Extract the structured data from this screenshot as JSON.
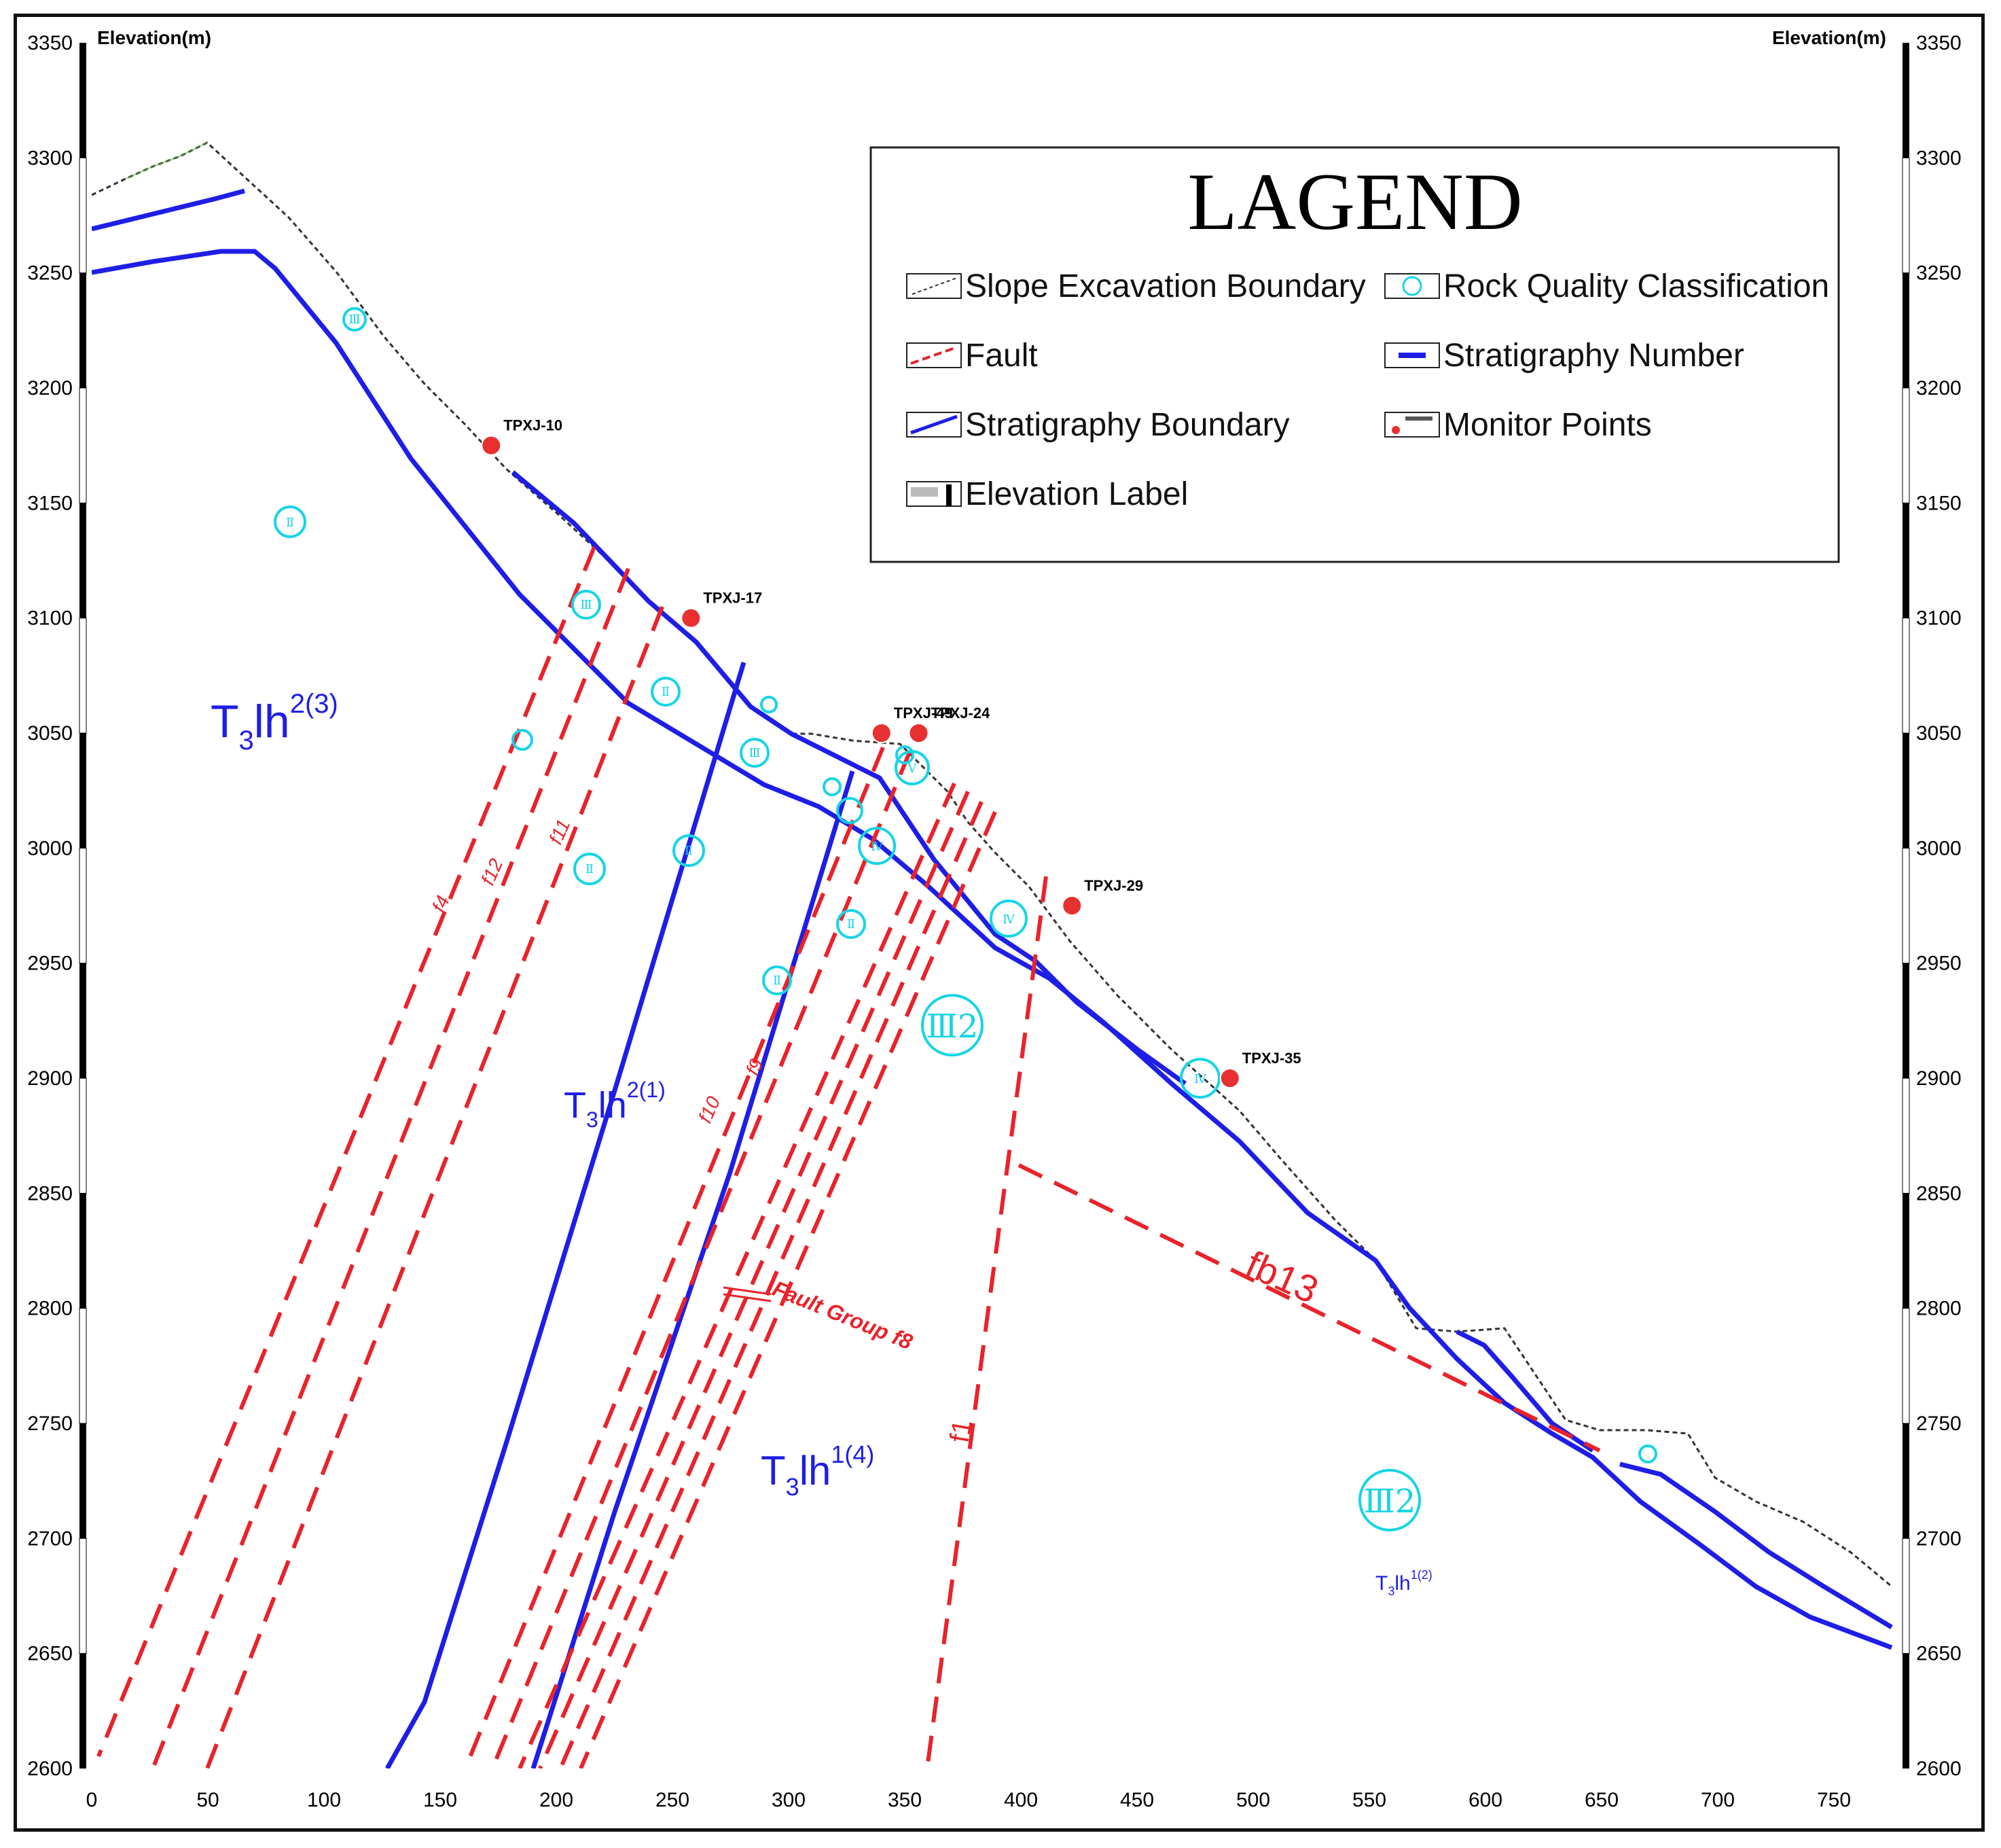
{
  "axes": {
    "left_label": "Elevation(m)",
    "right_label": "Elevation(m)",
    "y_ticks": [
      "3350",
      "3300",
      "3250",
      "3200",
      "3150",
      "3100",
      "3050",
      "3000",
      "2950",
      "2900",
      "2850",
      "2800",
      "2750",
      "2700",
      "2650",
      "2600"
    ],
    "x_ticks": [
      "0",
      "50",
      "100",
      "150",
      "200",
      "250",
      "300",
      "350",
      "400",
      "450",
      "500",
      "550",
      "600",
      "650",
      "700",
      "750"
    ]
  },
  "legend": {
    "title": "LAGEND",
    "items": [
      {
        "label": "Slope Excavation Boundary"
      },
      {
        "label": "Rock Quality Classification"
      },
      {
        "label": "Fault"
      },
      {
        "label": "Stratigraphy Number"
      },
      {
        "label": "Stratigraphy Boundary"
      },
      {
        "label": "Monitor Points"
      },
      {
        "label": "Elevation Label"
      }
    ]
  },
  "monitor_points": [
    {
      "label": "TPXJ-10",
      "x": 172,
      "elev": 3175
    },
    {
      "label": "TPXJ-17",
      "x": 258,
      "elev": 3100
    },
    {
      "label": "TPXJ-49",
      "x": 340,
      "elev": 3050
    },
    {
      "label": "TPXJ-24",
      "x": 356,
      "elev": 3050
    },
    {
      "label": "TPXJ-29",
      "x": 422,
      "elev": 2975
    },
    {
      "label": "TPXJ-35",
      "x": 490,
      "elev": 2900
    }
  ],
  "strata": [
    {
      "base": "T",
      "sub": "3",
      "mid": "lh",
      "sup": "2(3)"
    },
    {
      "base": "T",
      "sub": "3",
      "mid": "lh",
      "sup": "2(1)"
    },
    {
      "base": "T",
      "sub": "3",
      "mid": "lh",
      "sup": "1(4)"
    },
    {
      "base": "T",
      "sub": "3",
      "mid": "lh",
      "sup": "1(2)"
    }
  ],
  "fault_labels": {
    "f1": "f1",
    "fb13": "fb13",
    "group": "Fault Group f8",
    "f4": "f4",
    "f12": "f12",
    "f11": "f11",
    "f10": "f10",
    "f9": "f9"
  },
  "rock_class_large": [
    "Ⅲ2",
    "Ⅲ2"
  ],
  "colors": {
    "stratigraphy": "#1e1ee6",
    "fault": "#e8232a",
    "rock_class": "#17d4e6",
    "monitor": "#e83030"
  }
}
